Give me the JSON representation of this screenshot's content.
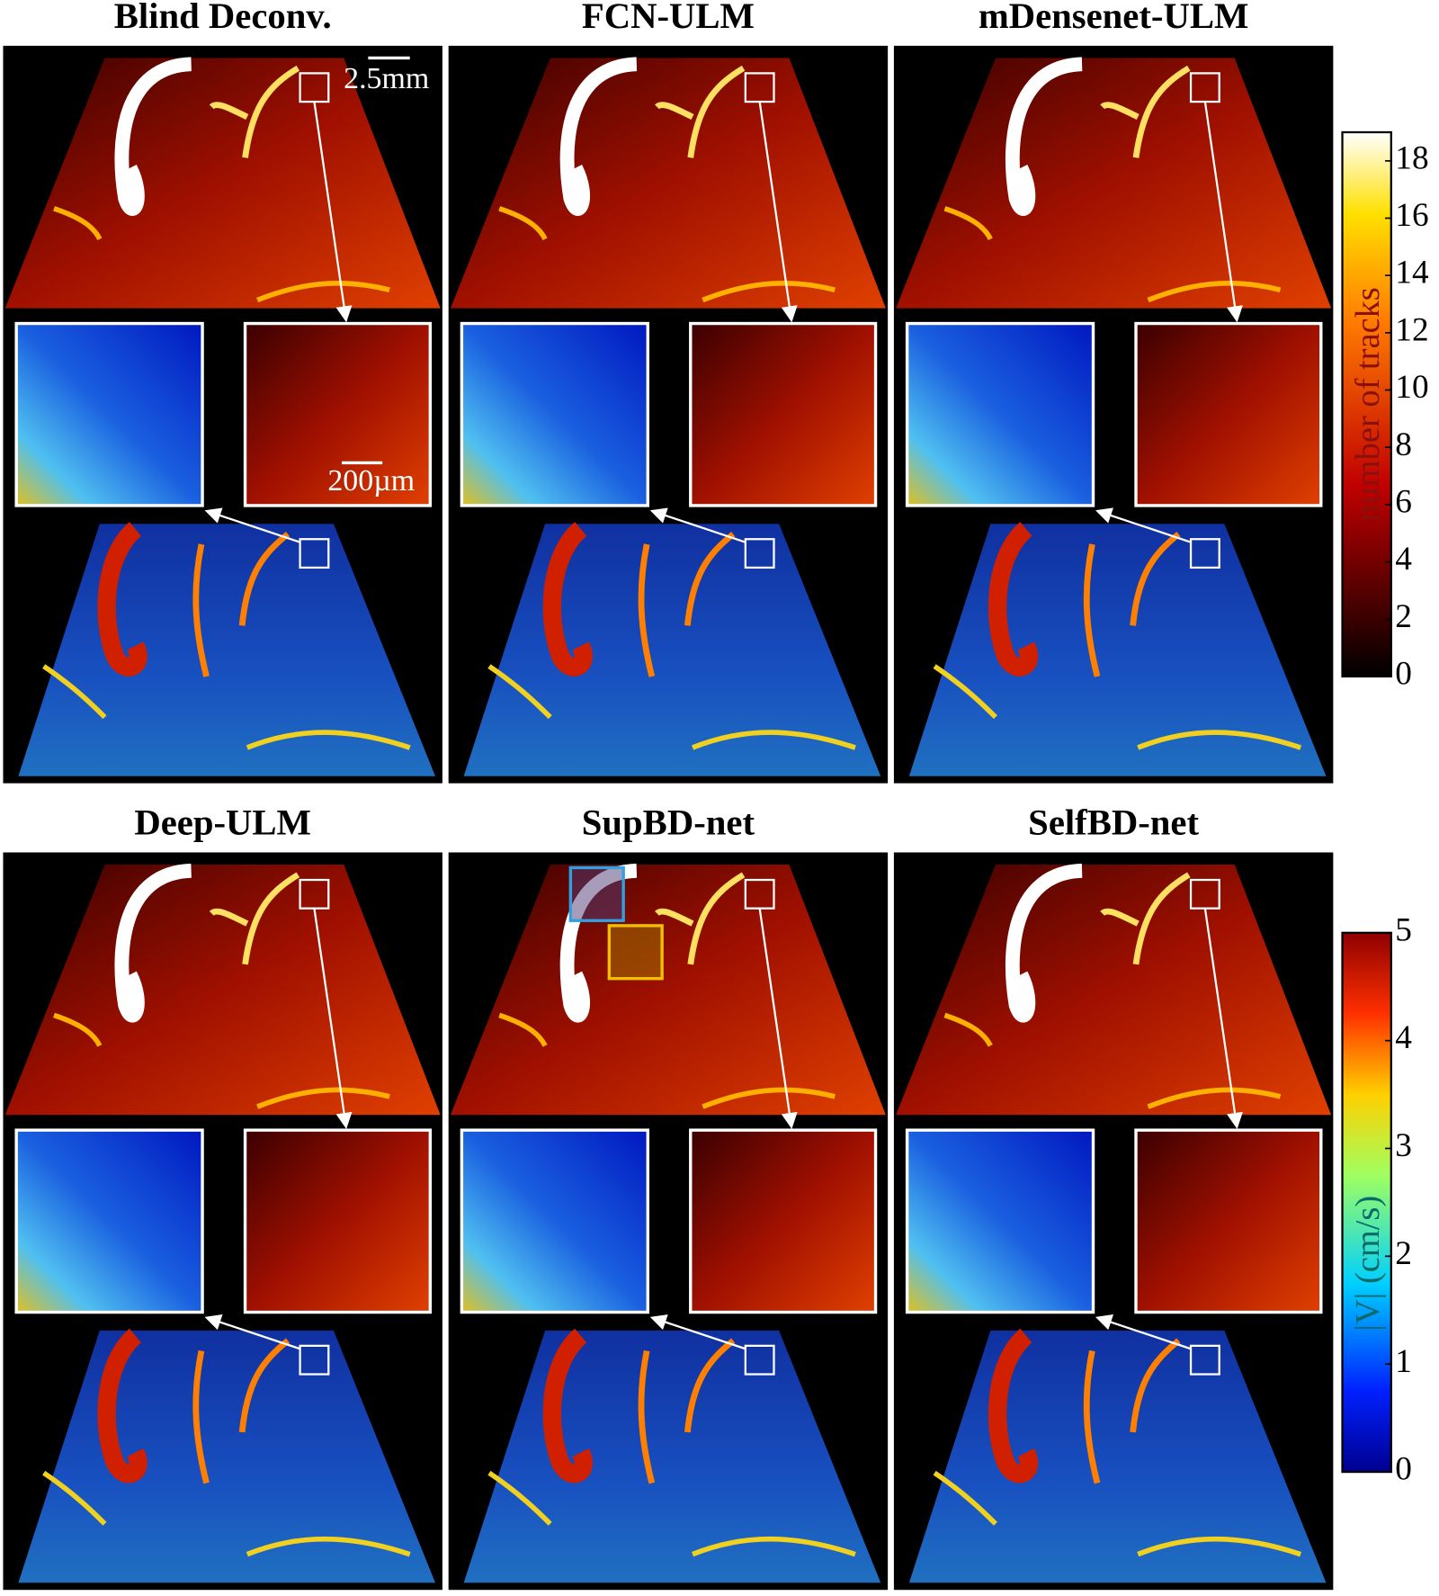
{
  "panels": [
    {
      "title": "Blind Deconv."
    },
    {
      "title": "FCN-ULM"
    },
    {
      "title": "mDensenet-ULM"
    },
    {
      "title": "Deep-ULM"
    },
    {
      "title": "SupBD-net"
    },
    {
      "title": "SelfBD-net"
    }
  ],
  "scale_bars": {
    "large": "2.5mm",
    "small": "200µm"
  },
  "colorbars": [
    {
      "label": "number of tracks",
      "lim": [
        0,
        19
      ],
      "ticks": [
        0,
        2,
        4,
        6,
        8,
        10,
        12,
        14,
        16,
        18
      ]
    },
    {
      "label": "|V| (cm/s)",
      "lim": [
        0,
        5
      ],
      "ticks": [
        0,
        1,
        2,
        3,
        4,
        5
      ]
    }
  ]
}
